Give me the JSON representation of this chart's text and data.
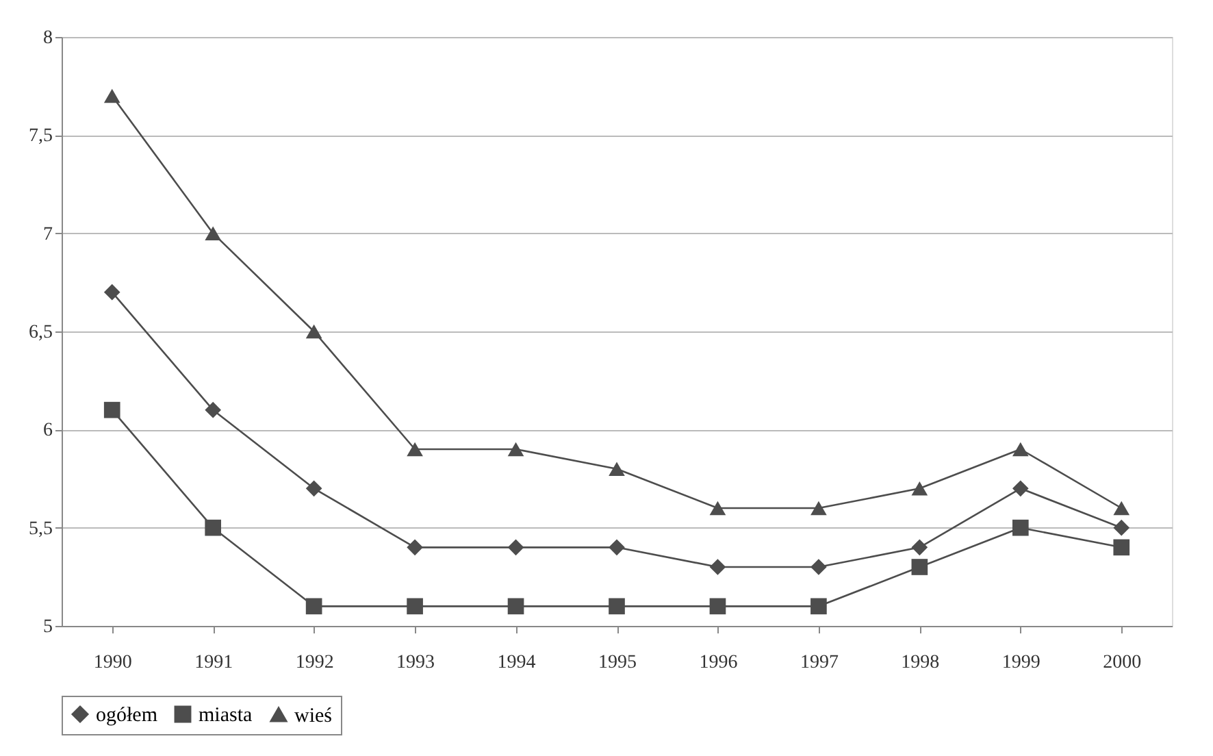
{
  "chart_data": {
    "type": "line",
    "categories": [
      "1990",
      "1991",
      "1992",
      "1993",
      "1994",
      "1995",
      "1996",
      "1997",
      "1998",
      "1999",
      "2000"
    ],
    "series": [
      {
        "name": "ogółem",
        "color": "#4d4d4d",
        "marker": "diamond",
        "values": [
          6.7,
          6.1,
          5.7,
          5.4,
          5.4,
          5.4,
          5.3,
          5.3,
          5.4,
          5.7,
          5.5
        ]
      },
      {
        "name": "miasta",
        "color": "#4d4d4d",
        "marker": "square",
        "values": [
          6.1,
          5.5,
          5.1,
          5.1,
          5.1,
          5.1,
          5.1,
          5.1,
          5.3,
          5.5,
          5.4
        ]
      },
      {
        "name": "wieś",
        "color": "#4d4d4d",
        "marker": "triangle",
        "values": [
          7.7,
          7.0,
          6.5,
          5.9,
          5.9,
          5.8,
          5.6,
          5.6,
          5.7,
          5.9,
          5.6
        ]
      }
    ],
    "ylim": [
      5,
      8
    ],
    "yticks": [
      5,
      {
        "value": 5.5,
        "label": "5,5"
      },
      6,
      {
        "value": 6.5,
        "label": "6,5"
      },
      7,
      {
        "value": 7.5,
        "label": "7,5"
      },
      8
    ],
    "grid": "y",
    "legend": "bottom",
    "line_style": "solid"
  }
}
